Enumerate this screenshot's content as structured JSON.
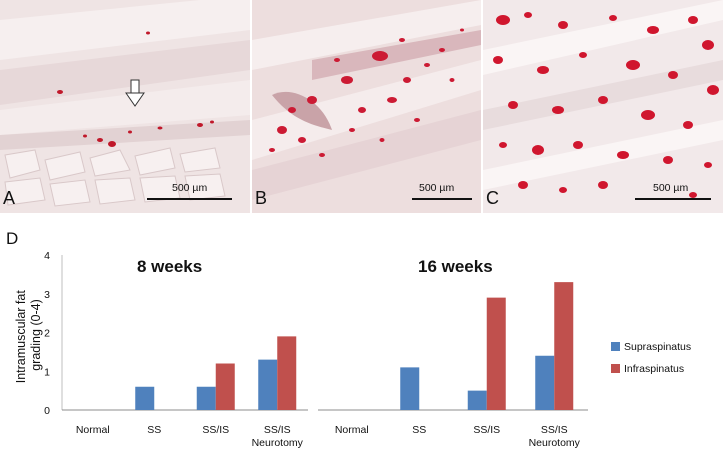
{
  "panels": {
    "a": {
      "letter": "A",
      "scale": "500 µm"
    },
    "b": {
      "letter": "B",
      "scale": "500 µm"
    },
    "c": {
      "letter": "C",
      "scale": "500 µm"
    }
  },
  "panel_d_letter": "D",
  "colors": {
    "supraspinatus": "#4F81BD",
    "infraspinatus": "#C0504D"
  },
  "chart_data": {
    "type": "bar",
    "ylabel": "Intramuscular fat grading (0-4)",
    "ylim": [
      0,
      4
    ],
    "yticks": [
      0,
      1,
      2,
      3,
      4
    ],
    "legend_position": "right",
    "groups": [
      {
        "title": "8 weeks",
        "categories": [
          "Normal",
          "SS",
          "SS/IS",
          "SS/IS Neurotomy"
        ],
        "series": [
          {
            "name": "Supraspinatus",
            "values": [
              0,
              0.6,
              0.6,
              1.3
            ]
          },
          {
            "name": "Infraspinatus",
            "values": [
              0,
              0,
              1.2,
              1.9
            ]
          }
        ]
      },
      {
        "title": "16 weeks",
        "categories": [
          "Normal",
          "SS",
          "SS/IS",
          "SS/IS Neurotomy"
        ],
        "series": [
          {
            "name": "Supraspinatus",
            "values": [
              0,
              1.1,
              0.5,
              1.4
            ]
          },
          {
            "name": "Infraspinatus",
            "values": [
              0,
              0,
              2.9,
              3.3
            ]
          }
        ]
      }
    ]
  }
}
